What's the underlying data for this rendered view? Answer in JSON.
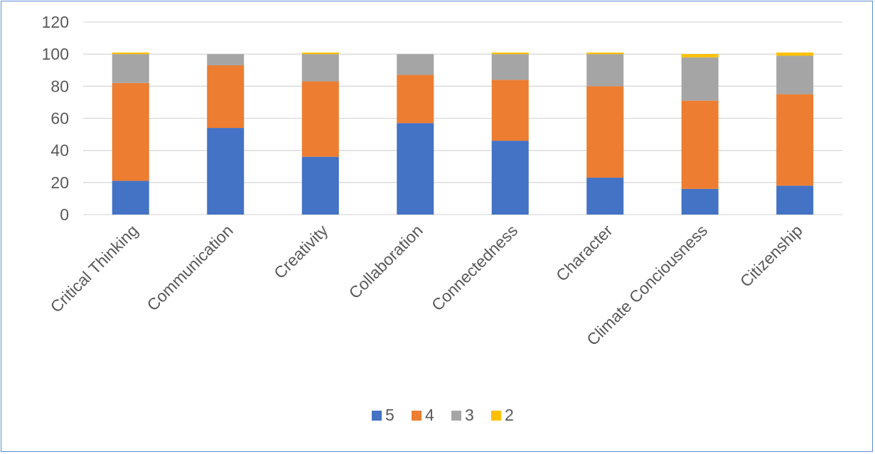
{
  "chart_data": {
    "type": "bar",
    "stacked": true,
    "categories": [
      "Critical Thinking",
      "Communication",
      "Creativity",
      "Collaboration",
      "Connectedness",
      "Character",
      "Climate Conciousness",
      "Citizenship"
    ],
    "series": [
      {
        "name": "5",
        "color": "#4472c4",
        "values": [
          21,
          54,
          36,
          57,
          46,
          23,
          16,
          18
        ]
      },
      {
        "name": "4",
        "color": "#ed7d31",
        "values": [
          61,
          39,
          47,
          30,
          38,
          57,
          55,
          57
        ]
      },
      {
        "name": "3",
        "color": "#a5a5a5",
        "values": [
          18,
          7,
          17,
          13,
          16,
          20,
          27,
          24
        ]
      },
      {
        "name": "2",
        "color": "#ffc000",
        "values": [
          1,
          0,
          1,
          0,
          1,
          1,
          2,
          2
        ]
      }
    ],
    "yticks": [
      "0",
      "20",
      "40",
      "60",
      "80",
      "100",
      "120"
    ],
    "ylim": [
      0,
      120
    ],
    "grid": true,
    "legend": "bottom"
  }
}
